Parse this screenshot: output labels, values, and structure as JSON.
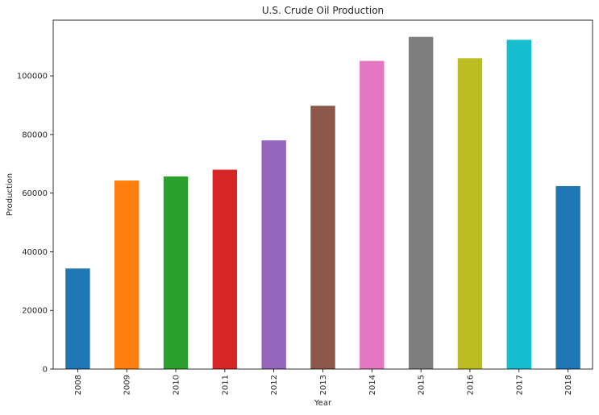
{
  "chart_data": {
    "type": "bar",
    "title": "U.S. Crude Oil Production",
    "xlabel": "Year",
    "ylabel": "Production",
    "categories": [
      "2008",
      "2009",
      "2010",
      "2011",
      "2012",
      "2013",
      "2014",
      "2015",
      "2016",
      "2017",
      "2018"
    ],
    "values": [
      34300,
      64300,
      65700,
      68000,
      78000,
      89800,
      105100,
      113300,
      106000,
      112300,
      62400
    ],
    "colors": [
      "#1f77b4",
      "#ff7f0e",
      "#2ca02c",
      "#d62728",
      "#9467bd",
      "#8c564b",
      "#e377c2",
      "#7f7f7f",
      "#bcbd22",
      "#17becf",
      "#1f77b4"
    ],
    "yticks": [
      0,
      20000,
      40000,
      60000,
      80000,
      100000
    ],
    "ylim": [
      0,
      119000
    ],
    "grid": false,
    "legend": false
  }
}
